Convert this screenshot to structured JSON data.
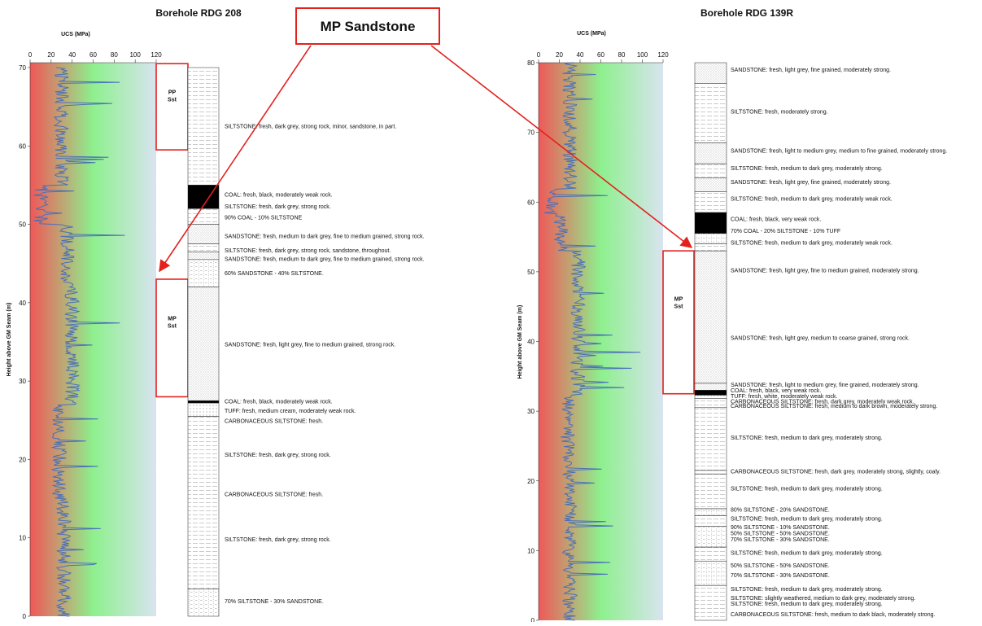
{
  "callout": {
    "label": "MP Sandstone"
  },
  "colors": {
    "gradient_weak": "#f05858",
    "gradient_mid": "#8ef08e",
    "gradient_strong": "#d9e4f0",
    "ucs_line": "#4a70b8",
    "arrow": "#e3211d",
    "coal": "#000000"
  },
  "left": {
    "title": "Borehole RDG 208",
    "ucs_axis_title": "UCS (MPa)",
    "y_axis_title": "Height above GM Seam (m)",
    "x_ticks": [
      "0",
      "20",
      "40",
      "60",
      "80",
      "100",
      "120"
    ],
    "y_ticks": [
      "0",
      "10",
      "20",
      "30",
      "40",
      "50",
      "60",
      "70"
    ],
    "units": [
      {
        "label_1": "PP",
        "label_2": "Sst",
        "from_m": 59.5,
        "to_m": 70.5
      },
      {
        "label_1": "MP",
        "label_2": "Sst",
        "from_m": 28,
        "to_m": 43
      }
    ],
    "lithology": [
      {
        "top": 70,
        "bottom": 55,
        "kind": "silt"
      },
      {
        "top": 55,
        "bottom": 52,
        "kind": "coal"
      },
      {
        "top": 52,
        "bottom": 50,
        "kind": "silt"
      },
      {
        "top": 50,
        "bottom": 47.5,
        "kind": "sand"
      },
      {
        "top": 47.5,
        "bottom": 46.5,
        "kind": "silt"
      },
      {
        "top": 46.5,
        "bottom": 45.5,
        "kind": "sand"
      },
      {
        "top": 45.5,
        "bottom": 42,
        "kind": "mix"
      },
      {
        "top": 42,
        "bottom": 27.5,
        "kind": "sand"
      },
      {
        "top": 27.5,
        "bottom": 27.2,
        "kind": "coal"
      },
      {
        "top": 27.2,
        "bottom": 25.5,
        "kind": "tuff"
      },
      {
        "top": 25.5,
        "bottom": 3.5,
        "kind": "silt"
      },
      {
        "top": 3.5,
        "bottom": 0,
        "kind": "mix"
      }
    ],
    "descriptions": [
      {
        "text": "SILTSTONE: fresh, dark grey, strong rock, minor, sandstone, in part.",
        "h": 62.5
      },
      {
        "text": "COAL: fresh, black, moderately weak rock.",
        "h": 53.8
      },
      {
        "text": "SILTSTONE: fresh, dark grey, strong rock.",
        "h": 52.3
      },
      {
        "text": "90% COAL - 10% SILTSTONE",
        "h": 50.9
      },
      {
        "text": "SANDSTONE: fresh, medium to dark grey, fine to medium grained, strong rock.",
        "h": 48.5
      },
      {
        "text": "SILTSTONE: fresh, dark grey, strong rock, sandstone, throughout.",
        "h": 46.7
      },
      {
        "text": "SANDSTONE: fresh, medium to dark grey, fine to medium grained, strong rock.",
        "h": 45.6
      },
      {
        "text": "60% SANDSTONE - 40% SILTSTONE.",
        "h": 43.8
      },
      {
        "text": "SANDSTONE: fresh, light grey, fine to medium grained, strong rock.",
        "h": 34.7
      },
      {
        "text": "COAL: fresh, black, moderately weak rock.",
        "h": 27.4
      },
      {
        "text": "TUFF: fresh, medium cream, moderately weak rock.",
        "h": 26.2
      },
      {
        "text": "CARBONACEOUS SILTSTONE: fresh.",
        "h": 24.9
      },
      {
        "text": "SILTSTONE: fresh, dark grey, strong rock.",
        "h": 20.6
      },
      {
        "text": "CARBONACEOUS SILTSTONE: fresh.",
        "h": 15.6
      },
      {
        "text": "SILTSTONE: fresh, dark grey, strong rock.",
        "h": 9.8
      },
      {
        "text": "70% SILTSTONE - 30% SANDSTONE.",
        "h": 1.9
      }
    ]
  },
  "right": {
    "title": "Borehole RDG 139R",
    "ucs_axis_title": "UCS (MPa)",
    "y_axis_title": "Height above GM Seam (m)",
    "x_ticks": [
      "0",
      "20",
      "40",
      "60",
      "80",
      "100",
      "120"
    ],
    "y_ticks": [
      "0",
      "10",
      "20",
      "30",
      "40",
      "50",
      "60",
      "70",
      "80"
    ],
    "units": [
      {
        "label_1": "MP",
        "label_2": "Sst",
        "from_m": 32.5,
        "to_m": 53
      }
    ],
    "lithology": [
      {
        "top": 80,
        "bottom": 77,
        "kind": "sand"
      },
      {
        "top": 77,
        "bottom": 68.5,
        "kind": "silt"
      },
      {
        "top": 68.5,
        "bottom": 65.5,
        "kind": "sand"
      },
      {
        "top": 65.5,
        "bottom": 63.5,
        "kind": "silt"
      },
      {
        "top": 63.5,
        "bottom": 61.5,
        "kind": "sand"
      },
      {
        "top": 61.5,
        "bottom": 58.5,
        "kind": "silt"
      },
      {
        "top": 58.5,
        "bottom": 55.5,
        "kind": "coal"
      },
      {
        "top": 55.5,
        "bottom": 54,
        "kind": "mix"
      },
      {
        "top": 54,
        "bottom": 53,
        "kind": "silt"
      },
      {
        "top": 53,
        "bottom": 34,
        "kind": "sand"
      },
      {
        "top": 34,
        "bottom": 33,
        "kind": "sand"
      },
      {
        "top": 33,
        "bottom": 32.3,
        "kind": "coal"
      },
      {
        "top": 32.3,
        "bottom": 31.8,
        "kind": "tuff"
      },
      {
        "top": 31.8,
        "bottom": 30.5,
        "kind": "silt"
      },
      {
        "top": 30.5,
        "bottom": 21.5,
        "kind": "silt"
      },
      {
        "top": 21.5,
        "bottom": 21,
        "kind": "silt"
      },
      {
        "top": 21,
        "bottom": 16,
        "kind": "silt"
      },
      {
        "top": 16,
        "bottom": 15,
        "kind": "mix"
      },
      {
        "top": 15,
        "bottom": 13.5,
        "kind": "silt"
      },
      {
        "top": 13.5,
        "bottom": 10.5,
        "kind": "mix"
      },
      {
        "top": 10.5,
        "bottom": 8.5,
        "kind": "silt"
      },
      {
        "top": 8.5,
        "bottom": 5,
        "kind": "mix"
      },
      {
        "top": 5,
        "bottom": 0,
        "kind": "silt"
      }
    ],
    "descriptions": [
      {
        "text": "SANDSTONE: fresh, light grey, fine grained, moderately strong.",
        "h": 79.0
      },
      {
        "text": "SILTSTONE: fresh, moderately strong.",
        "h": 73.0
      },
      {
        "text": "SANDSTONE: fresh, light to medium grey, medium to fine grained, moderately strong.",
        "h": 67.4
      },
      {
        "text": "SILTSTONE: fresh, medium to dark grey, moderately strong.",
        "h": 64.9
      },
      {
        "text": "SANDSTONE: fresh, light grey, fine grained, moderately strong.",
        "h": 62.9
      },
      {
        "text": "SILTSTONE: fresh, medium to dark grey, moderately weak rock.",
        "h": 60.5
      },
      {
        "text": "COAL: fresh, black, very weak rock.",
        "h": 57.6
      },
      {
        "text": "70% COAL - 20% SILTSTONE - 10% TUFF",
        "h": 55.9
      },
      {
        "text": "SILTSTONE: fresh, medium to dark grey, moderately weak rock.",
        "h": 54.2
      },
      {
        "text": "SANDSTONE: fresh, light grey, fine to medium grained, moderately strong.",
        "h": 50.2
      },
      {
        "text": "SANDSTONE: fresh, light grey, medium to coarse grained, strong rock.",
        "h": 40.5
      },
      {
        "text": "SANDSTONE: fresh, light to medium grey, fine grained, moderately strong.",
        "h": 33.8
      },
      {
        "text": "COAL: fresh, black, very weak rock.",
        "h": 33.0
      },
      {
        "text": "TUFF: fresh, white, moderately weak rock.",
        "h": 32.2
      },
      {
        "text": "CARBONACEOUS SILTSTONE: fresh, dark grey, moderately weak rock.",
        "h": 31.4
      },
      {
        "text": "CARBONACEOUS SILTSTONE: fresh, medium to dark brown, moderately strong.",
        "h": 30.8
      },
      {
        "text": "SILTSTONE: fresh, medium to dark grey, moderately strong.",
        "h": 26.2
      },
      {
        "text": "CARBONACEOUS SILTSTONE: fresh, dark grey, moderately strong, slightly, coaly.",
        "h": 21.4
      },
      {
        "text": "SILTSTONE: fresh, medium to dark grey, moderately strong.",
        "h": 18.9
      },
      {
        "text": "80% SILTSTONE - 20% SANDSTONE.",
        "h": 15.9
      },
      {
        "text": "SILTSTONE: fresh, medium to dark grey, moderately strong.",
        "h": 14.6
      },
      {
        "text": "90% SILTSTONE - 10% SANDSTONE.",
        "h": 13.4
      },
      {
        "text": "50% SILTSTONE - 50% SANDSTONE.",
        "h": 12.5
      },
      {
        "text": "70% SILTSTONE - 30% SANDSTONE.",
        "h": 11.6
      },
      {
        "text": "SILTSTONE: fresh, medium to dark grey, moderately strong.",
        "h": 9.7
      },
      {
        "text": "50% SILTSTONE - 50% SANDSTONE.",
        "h": 7.9
      },
      {
        "text": "70% SILTSTONE - 30% SANDSTONE.",
        "h": 6.5
      },
      {
        "text": "SILTSTONE: fresh, medium to dark grey, moderately strong.",
        "h": 4.5
      },
      {
        "text": "SILTSTONE: slightly weathered, medium to dark grey, moderately strong.",
        "h": 3.2
      },
      {
        "text": "SILTSTONE: fresh, medium to dark grey, moderately strong.",
        "h": 2.4
      },
      {
        "text": "CARBONACEOUS SILTSTONE: fresh, medium to dark black, moderately strong.",
        "h": 0.9
      }
    ]
  }
}
